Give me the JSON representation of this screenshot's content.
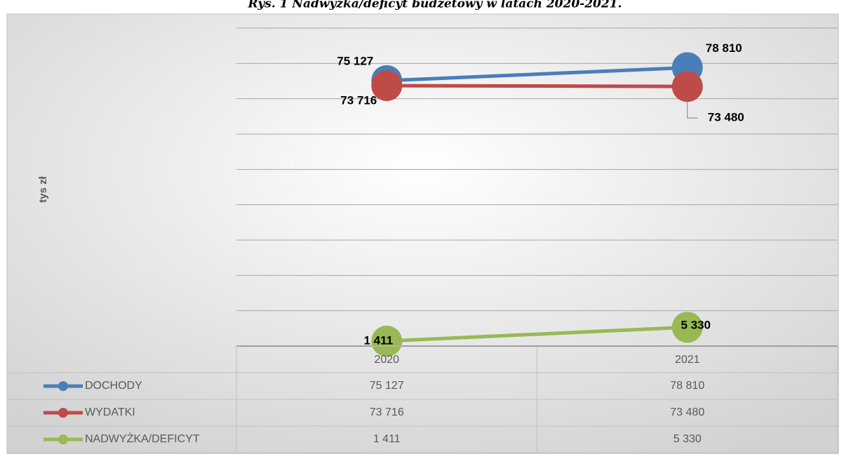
{
  "chart_data": {
    "type": "line",
    "title": "Rys. 1 Nadwyżka/deficyt budżetowy w latach 2020-2021.",
    "y_label": "tys zł",
    "categories": [
      "2020",
      "2021"
    ],
    "series": [
      {
        "name": "DOCHODY",
        "color": "#4a7ebb",
        "values": [
          75127,
          78810
        ],
        "value_labels": [
          "75 127",
          "78 810"
        ]
      },
      {
        "name": "WYDATKI",
        "color": "#be4b48",
        "values": [
          73716,
          73480
        ],
        "value_labels": [
          "73 716",
          "73 480"
        ]
      },
      {
        "name": "NADWYŻKA/DEFICYT",
        "color": "#98b954",
        "values": [
          1411,
          5330
        ],
        "value_labels": [
          "1 411",
          "5 330"
        ]
      }
    ],
    "ylim": [
      0,
      90000
    ],
    "yticks": [
      0,
      10000,
      20000,
      30000,
      40000,
      50000,
      60000,
      70000,
      80000,
      90000
    ],
    "show_tick_labels": false,
    "grid": true,
    "data_table": true
  }
}
